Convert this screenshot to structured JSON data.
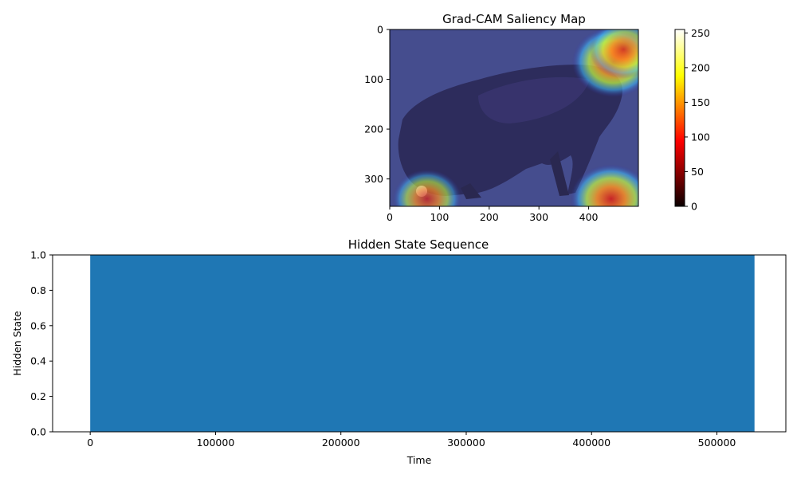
{
  "chart_data": [
    {
      "type": "heatmap",
      "title": "Grad-CAM Saliency Map",
      "xlim": [
        0,
        500
      ],
      "ylim": [
        355,
        0
      ],
      "x_ticks": [
        0,
        100,
        200,
        300,
        400
      ],
      "y_ticks": [
        0,
        100,
        200,
        300
      ],
      "colorbar": {
        "colormap": "hot",
        "range": [
          0,
          255
        ],
        "ticks": [
          0,
          50,
          100,
          150,
          200,
          250
        ]
      },
      "hotspots": [
        {
          "x": 450,
          "y": 65,
          "intensity": 1.0
        },
        {
          "x": 470,
          "y": 40,
          "intensity": 0.6
        },
        {
          "x": 445,
          "y": 340,
          "intensity": 0.95
        },
        {
          "x": 75,
          "y": 340,
          "intensity": 0.6
        }
      ],
      "overlay_colors": {
        "background": "#4b4f98",
        "dog": "#2c2a5a",
        "cold": "#3030b0",
        "warm_1": "#40c0ff",
        "warm_2": "#c8ff40",
        "hot_1": "#ff9020",
        "hot_2": "#d02020"
      }
    },
    {
      "type": "bar",
      "title": "Hidden State Sequence",
      "xlabel": "Time",
      "ylabel": "Hidden State",
      "xlim": [
        -30000,
        555000
      ],
      "ylim": [
        0,
        1
      ],
      "x_ticks": [
        0,
        100000,
        200000,
        300000,
        400000,
        500000
      ],
      "y_ticks": [
        "0.0",
        "0.2",
        "0.4",
        "0.6",
        "0.8",
        "1.0"
      ],
      "series": [
        {
          "x_start": 0,
          "x_end": 530000,
          "value": 1.0,
          "color": "#1f77b4"
        }
      ]
    }
  ]
}
